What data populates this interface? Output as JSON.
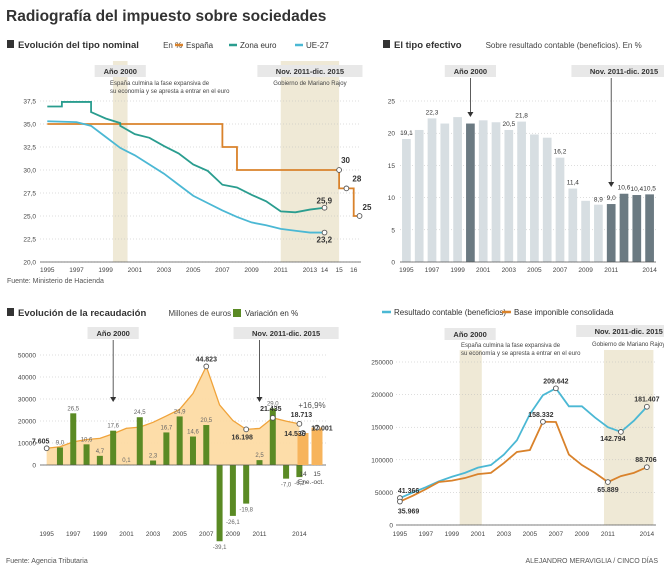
{
  "title": "Radiografía del impuesto sobre sociedades",
  "credits": {
    "source_left": "Fuente: Agencia Tributaria",
    "author": "ALEJANDRO MERAVIGLIA / CINCO DÍAS"
  },
  "colors": {
    "espana": "#d9822b",
    "zona_euro": "#2a9d8f",
    "ue27": "#4bb8d4",
    "highlight_band": "#efe9d6",
    "bars_light": "#d7dee2",
    "bars_dark": "#6b7a82",
    "variation": "#5a8a24",
    "area": "#fdd9a0",
    "area_line": "#f0a33a",
    "area_dark": "#f7b45c"
  },
  "chart_data": [
    {
      "id": "tipo_nominal",
      "type": "line",
      "title": "Evolución del tipo nominal",
      "subtitle": "En %",
      "source": "Fuente: Ministerio de Hacienda",
      "legend": [
        "España",
        "Zona euro",
        "UE-27"
      ],
      "ylim": [
        20,
        37.5
      ],
      "yticks": [
        "20,0",
        "22,5",
        "25,0",
        "27,5",
        "30,0",
        "32,5",
        "35,0",
        "37,5"
      ],
      "xticks": [
        "1995",
        "1997",
        "1999",
        "2001",
        "2003",
        "2005",
        "2007",
        "2009",
        "2011",
        "2013",
        "14",
        "15",
        "16"
      ],
      "annotations": [
        {
          "label": "Año 2000",
          "text1": "España culmina la fase expansiva de",
          "text2": "su economía y se apresta a entrar en el euro"
        },
        {
          "label": "Nov. 2011-dic. 2015",
          "text1": "Gobierno de Mariano Rajoy"
        }
      ],
      "series": [
        {
          "name": "España",
          "x": [
            1995,
            2007,
            2007,
            2008,
            2008,
            2015,
            2015,
            2016,
            2016,
            2016.5
          ],
          "y": [
            35,
            35,
            32.5,
            32.5,
            30,
            30,
            28,
            28,
            25,
            25
          ]
        },
        {
          "name": "Zona euro",
          "x": [
            1995,
            1996,
            1996,
            1998,
            1998,
            1999,
            2000,
            2000,
            2001,
            2002,
            2003,
            2004,
            2005,
            2006,
            2007,
            2008,
            2009,
            2010,
            2011,
            2012,
            2013,
            2014
          ],
          "y": [
            36.9,
            36.9,
            37.4,
            37.4,
            36.3,
            35.6,
            35.1,
            34.8,
            33.9,
            33.5,
            32.6,
            31.8,
            30.6,
            29.9,
            28.4,
            28.1,
            27.3,
            26.6,
            25.5,
            25.4,
            25.7,
            25.9
          ]
        },
        {
          "name": "UE-27",
          "x": [
            1995,
            1997,
            1998,
            1999,
            2000,
            2001,
            2002,
            2003,
            2004,
            2005,
            2006,
            2007,
            2008,
            2009,
            2010,
            2011,
            2012,
            2013,
            2014
          ],
          "y": [
            35.3,
            35.2,
            34.8,
            33.6,
            32.4,
            31.6,
            30.6,
            29.6,
            28.4,
            27.2,
            26.4,
            25.6,
            24.9,
            24.3,
            24.0,
            23.6,
            23.4,
            23.2,
            23.2
          ]
        }
      ],
      "end_labels": [
        {
          "value": "30",
          "x": 2015,
          "y": 30
        },
        {
          "value": "28",
          "x": 2015.5,
          "y": 28
        },
        {
          "value": "25",
          "x": 2016.4,
          "y": 25
        },
        {
          "value": "25,9",
          "x": 2014,
          "y": 25.9
        },
        {
          "value": "23,2",
          "x": 2014,
          "y": 23.2
        }
      ]
    },
    {
      "id": "tipo_efectivo",
      "type": "bar",
      "title": "El tipo efectivo",
      "subtitle": "Sobre resultado contable (beneficios). En %",
      "ylim": [
        0,
        25
      ],
      "yticks": [
        "0",
        "5",
        "10",
        "15",
        "20",
        "25"
      ],
      "xticks": [
        "1995",
        "1997",
        "1999",
        "2001",
        "2003",
        "2005",
        "2007",
        "2009",
        "2011",
        "2014"
      ],
      "years": [
        1995,
        1996,
        1997,
        1998,
        1999,
        2000,
        2001,
        2002,
        2003,
        2004,
        2005,
        2006,
        2007,
        2008,
        2009,
        2010,
        2011,
        2012,
        2013,
        2014
      ],
      "values": [
        19.1,
        20.5,
        22.3,
        21.5,
        22.5,
        21.5,
        22.0,
        21.7,
        20.5,
        21.8,
        19.8,
        19.3,
        16.2,
        11.4,
        9.5,
        8.9,
        9.0,
        10.6,
        10.4,
        10.5
      ],
      "labels": {
        "1995": "19,1",
        "1997": "22,3",
        "2003": "20,5",
        "2004": "21,8",
        "2007": "16,2",
        "2008": "11,4",
        "2010": "8,9",
        "2011": "9,0",
        "2012": "10,6",
        "2013": "10,4",
        "2014": "10,5"
      },
      "annotations": [
        {
          "label": "Año 2000"
        },
        {
          "label": "Nov. 2011-dic. 2015"
        }
      ]
    },
    {
      "id": "recaudacion",
      "type": "bar",
      "title": "Evolución de la recaudación",
      "subtitle": "Millones de euros",
      "legend": [
        "Variación en %"
      ],
      "ylim": [
        0,
        50000
      ],
      "yticks": [
        "0",
        "10000",
        "20000",
        "30000",
        "40000",
        "50000"
      ],
      "xticks": [
        "1995",
        "1997",
        "1999",
        "2001",
        "2003",
        "2005",
        "2007",
        "2009",
        "2011",
        "2014"
      ],
      "years": [
        1995,
        1996,
        1997,
        1998,
        1999,
        2000,
        2001,
        2002,
        2003,
        2004,
        2005,
        2006,
        2007,
        2008,
        2009,
        2010,
        2011,
        2012,
        2013,
        2014
      ],
      "recaudacion": [
        7605,
        8300,
        10500,
        11600,
        12100,
        14200,
        16700,
        17200,
        19400,
        22300,
        25300,
        32500,
        44823,
        27300,
        20200,
        16198,
        16611,
        21435,
        19945,
        18713
      ],
      "recaudacion_labels": {
        "1995": "7.605",
        "2007": "44.823",
        "2010": "16.198",
        "2012": "21.435",
        "2014": "18.713"
      },
      "variacion": [
        null,
        9.0,
        26.5,
        10.6,
        4.7,
        17.6,
        0.1,
        24.5,
        2.3,
        16.7,
        24.9,
        14.6,
        20.5,
        -39.1,
        -26.1,
        -19.8,
        2.5,
        29.0,
        -7.0,
        -6.2
      ],
      "variacion_labels": {
        "1996": "9,0",
        "1997": "26,5",
        "1998": "10,6",
        "1999": "4,7",
        "2000": "17,6",
        "2001": "0,1",
        "2002": "24,5",
        "2003": "2,3",
        "2004": "16,7",
        "2005": "24,9",
        "2006": "14,6",
        "2007": "20,5",
        "2008": "-39,1",
        "2009": "-26,1",
        "2010": "-19,8",
        "2011": "2,5",
        "2012": "29,0",
        "2013": "-7,0",
        "2014": "-6,2"
      },
      "partial": {
        "categories": [
          "14",
          "15"
        ],
        "period": "Ene.-oct.",
        "values": [
          14536,
          17001
        ],
        "labels": [
          "14.536",
          "17.001"
        ],
        "change": "+16,9%"
      },
      "annotations": [
        {
          "label": "Año 2000"
        },
        {
          "label": "Nov. 2011-dic. 2015"
        }
      ]
    },
    {
      "id": "resultado_base",
      "type": "line",
      "legend": [
        "Resultado contable (beneficios)",
        "Base imponible consolidada"
      ],
      "ylim": [
        0,
        250000
      ],
      "yticks": [
        "0",
        "50000",
        "100000",
        "150000",
        "200000",
        "250000"
      ],
      "xticks": [
        "1995",
        "1997",
        "1999",
        "2001",
        "2003",
        "2005",
        "2007",
        "2009",
        "2011",
        "2014"
      ],
      "annotations": [
        {
          "label": "Año 2000",
          "text1": "España culmina la fase expansiva de",
          "text2": "su economía y se apresta a entrar en el euro"
        },
        {
          "label": "Nov. 2011-dic. 2015",
          "text1": "Gobierno de Mariano Rajoy"
        }
      ],
      "series": [
        {
          "name": "Resultado contable (beneficios)",
          "x": [
            1995,
            1996,
            1997,
            1998,
            1999,
            2000,
            2001,
            2002,
            2003,
            2004,
            2005,
            2006,
            2007,
            2008,
            2009,
            2010,
            2011,
            2012,
            2013,
            2014
          ],
          "y": [
            41366,
            50000,
            58000,
            67000,
            74000,
            80000,
            88000,
            92000,
            108000,
            130000,
            170000,
            199000,
            209642,
            182000,
            182000,
            165000,
            150000,
            142794,
            160000,
            181407
          ]
        },
        {
          "name": "Base imponible consolidada",
          "x": [
            1995,
            1996,
            1997,
            1998,
            1999,
            2000,
            2001,
            2002,
            2003,
            2004,
            2005,
            2006,
            2007,
            2008,
            2009,
            2010,
            2011,
            2012,
            2013,
            2014
          ],
          "y": [
            35969,
            45000,
            55000,
            66000,
            68000,
            72000,
            78000,
            80000,
            95000,
            112000,
            115000,
            158332,
            158000,
            108000,
            92000,
            80000,
            65889,
            75000,
            80000,
            88706
          ]
        }
      ],
      "point_labels": [
        {
          "value": "41.366",
          "x": 1995,
          "y": 41366
        },
        {
          "value": "35.969",
          "x": 1995,
          "y": 35969
        },
        {
          "value": "209.642",
          "x": 2007,
          "y": 209642
        },
        {
          "value": "158.332",
          "x": 2006,
          "y": 158332
        },
        {
          "value": "142.794",
          "x": 2012,
          "y": 142794
        },
        {
          "value": "65.889",
          "x": 2011,
          "y": 65889
        },
        {
          "value": "181.407",
          "x": 2014,
          "y": 181407
        },
        {
          "value": "88.706",
          "x": 2014,
          "y": 88706
        }
      ]
    }
  ]
}
